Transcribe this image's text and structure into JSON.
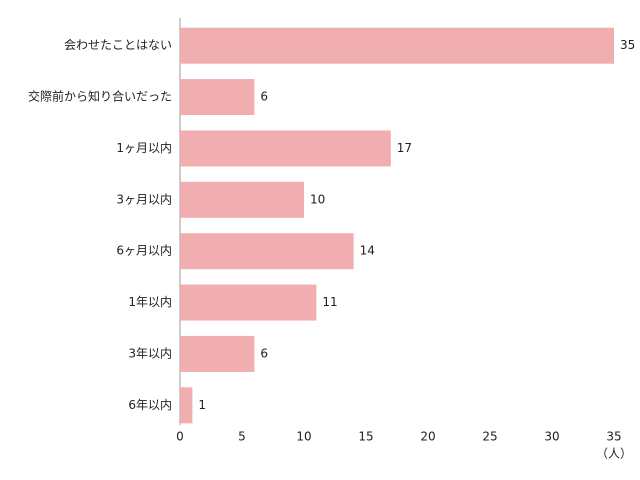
{
  "chart_data": {
    "type": "bar",
    "orientation": "horizontal",
    "categories": [
      "会わせたことはない",
      "交際前から知り合いだった",
      "1ヶ月以内",
      "3ヶ月以内",
      "6ヶ月以内",
      "1年以内",
      "3年以内",
      "6年以内"
    ],
    "values": [
      35,
      6,
      17,
      10,
      14,
      11,
      6,
      1
    ],
    "color": "#f1aeb0",
    "xlabel": "（人）",
    "xlim": [
      0,
      35
    ],
    "xticks": [
      0,
      5,
      10,
      15,
      20,
      25,
      30,
      35
    ],
    "grid": false
  }
}
